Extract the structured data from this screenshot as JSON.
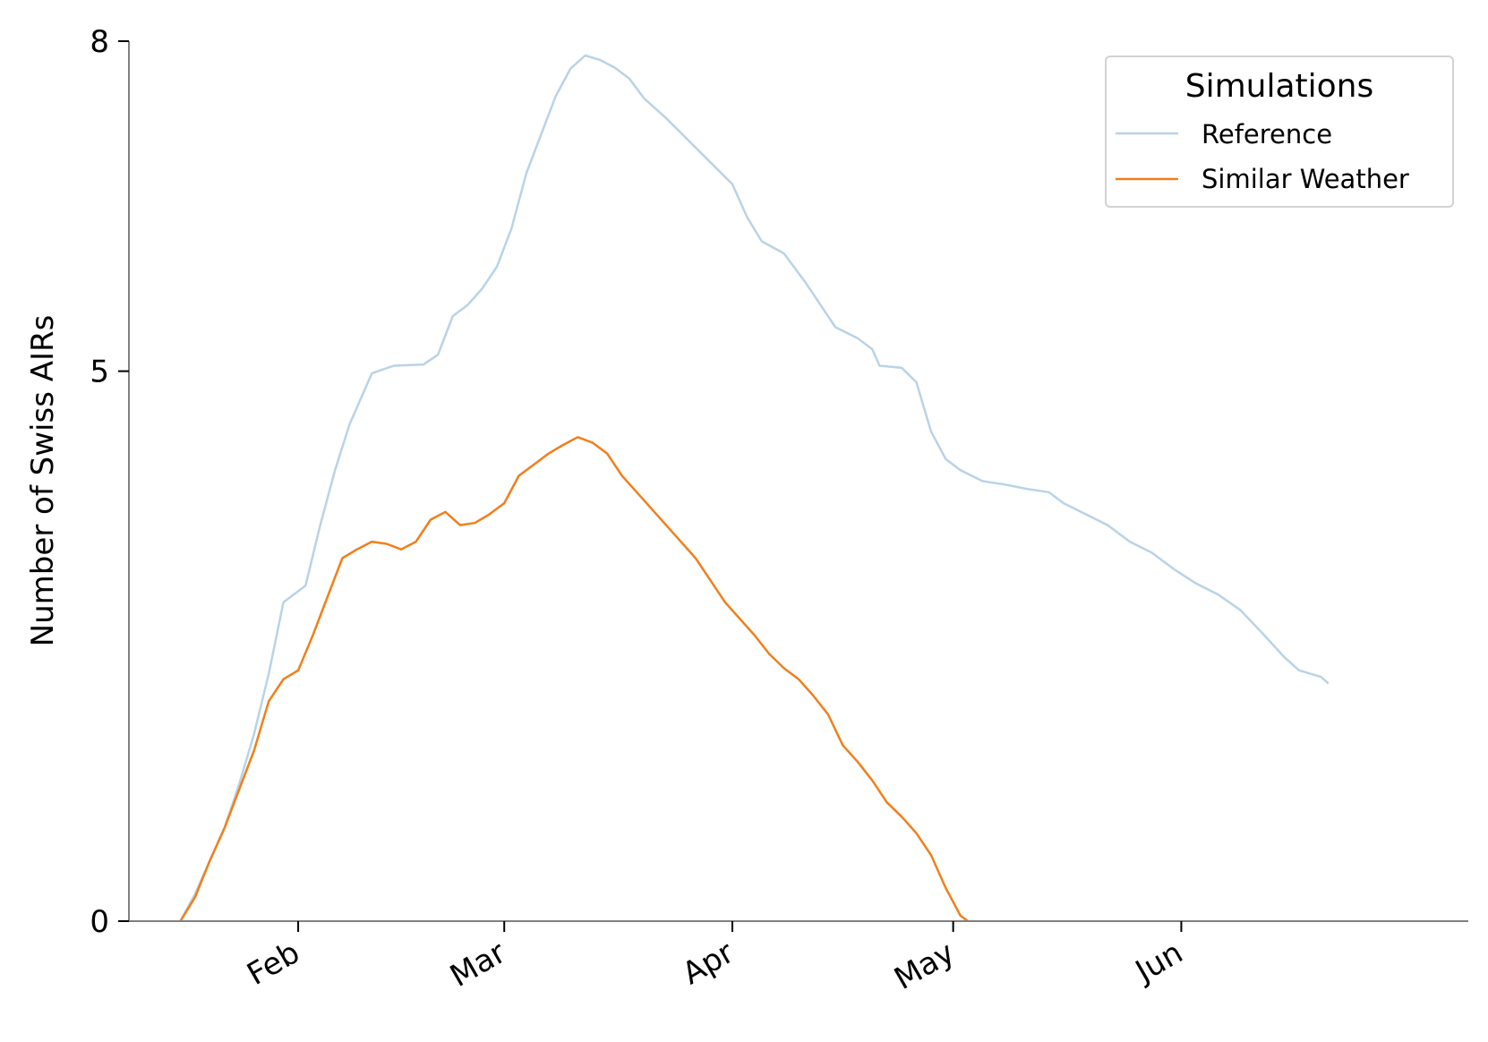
{
  "chart_data": {
    "type": "line",
    "title": "",
    "xlabel": "",
    "ylabel": "Number of Swiss AIRs",
    "x_type": "date",
    "xlim": [
      "2025-01-09",
      "2025-07-10"
    ],
    "ylim": [
      0,
      8
    ],
    "x_ticks": [
      {
        "date": "2025-02-01",
        "label": "Feb"
      },
      {
        "date": "2025-03-01",
        "label": "Mar"
      },
      {
        "date": "2025-04-01",
        "label": "Apr"
      },
      {
        "date": "2025-05-01",
        "label": "May"
      },
      {
        "date": "2025-06-01",
        "label": "Jun"
      }
    ],
    "y_ticks": [
      0,
      5,
      8
    ],
    "grid": false,
    "legend": {
      "title": "Simulations",
      "placement": "top-right"
    },
    "series": [
      {
        "name": "Reference",
        "color": "#b9d3e6",
        "points": [
          [
            "2025-01-16",
            0.0
          ],
          [
            "2025-01-18",
            0.25
          ],
          [
            "2025-01-20",
            0.55
          ],
          [
            "2025-01-22",
            0.85
          ],
          [
            "2025-01-24",
            1.25
          ],
          [
            "2025-01-26",
            1.7
          ],
          [
            "2025-01-28",
            2.25
          ],
          [
            "2025-01-30",
            2.9
          ],
          [
            "2025-02-02",
            3.05
          ],
          [
            "2025-02-04",
            3.6
          ],
          [
            "2025-02-06",
            4.1
          ],
          [
            "2025-02-08",
            4.52
          ],
          [
            "2025-02-11",
            4.98
          ],
          [
            "2025-02-14",
            5.05
          ],
          [
            "2025-02-18",
            5.06
          ],
          [
            "2025-02-20",
            5.15
          ],
          [
            "2025-02-22",
            5.5
          ],
          [
            "2025-02-24",
            5.6
          ],
          [
            "2025-02-26",
            5.75
          ],
          [
            "2025-02-28",
            5.95
          ],
          [
            "2025-03-02",
            6.3
          ],
          [
            "2025-03-04",
            6.8
          ],
          [
            "2025-03-06",
            7.15
          ],
          [
            "2025-03-08",
            7.5
          ],
          [
            "2025-03-10",
            7.75
          ],
          [
            "2025-03-12",
            7.87
          ],
          [
            "2025-03-14",
            7.83
          ],
          [
            "2025-03-16",
            7.76
          ],
          [
            "2025-03-18",
            7.66
          ],
          [
            "2025-03-20",
            7.48
          ],
          [
            "2025-03-23",
            7.3
          ],
          [
            "2025-03-26",
            7.1
          ],
          [
            "2025-03-29",
            6.9
          ],
          [
            "2025-04-01",
            6.7
          ],
          [
            "2025-04-03",
            6.4
          ],
          [
            "2025-04-05",
            6.18
          ],
          [
            "2025-04-08",
            6.07
          ],
          [
            "2025-04-11",
            5.8
          ],
          [
            "2025-04-13",
            5.6
          ],
          [
            "2025-04-15",
            5.4
          ],
          [
            "2025-04-18",
            5.3
          ],
          [
            "2025-04-20",
            5.2
          ],
          [
            "2025-04-21",
            5.05
          ],
          [
            "2025-04-24",
            5.03
          ],
          [
            "2025-04-26",
            4.9
          ],
          [
            "2025-04-28",
            4.45
          ],
          [
            "2025-04-30",
            4.2
          ],
          [
            "2025-05-02",
            4.1
          ],
          [
            "2025-05-05",
            4.0
          ],
          [
            "2025-05-08",
            3.97
          ],
          [
            "2025-05-11",
            3.93
          ],
          [
            "2025-05-14",
            3.9
          ],
          [
            "2025-05-16",
            3.8
          ],
          [
            "2025-05-19",
            3.7
          ],
          [
            "2025-05-22",
            3.6
          ],
          [
            "2025-05-25",
            3.45
          ],
          [
            "2025-05-28",
            3.35
          ],
          [
            "2025-05-31",
            3.2
          ],
          [
            "2025-06-03",
            3.07
          ],
          [
            "2025-06-06",
            2.97
          ],
          [
            "2025-06-09",
            2.83
          ],
          [
            "2025-06-12",
            2.62
          ],
          [
            "2025-06-15",
            2.4
          ],
          [
            "2025-06-17",
            2.28
          ],
          [
            "2025-06-20",
            2.22
          ],
          [
            "2025-06-21",
            2.16
          ]
        ]
      },
      {
        "name": "Similar Weather",
        "color": "#f07f1b",
        "points": [
          [
            "2025-01-16",
            0.0
          ],
          [
            "2025-01-18",
            0.22
          ],
          [
            "2025-01-20",
            0.55
          ],
          [
            "2025-01-22",
            0.85
          ],
          [
            "2025-01-24",
            1.2
          ],
          [
            "2025-01-26",
            1.55
          ],
          [
            "2025-01-28",
            2.0
          ],
          [
            "2025-01-30",
            2.2
          ],
          [
            "2025-02-01",
            2.28
          ],
          [
            "2025-02-03",
            2.6
          ],
          [
            "2025-02-05",
            2.95
          ],
          [
            "2025-02-07",
            3.3
          ],
          [
            "2025-02-09",
            3.38
          ],
          [
            "2025-02-11",
            3.45
          ],
          [
            "2025-02-13",
            3.43
          ],
          [
            "2025-02-15",
            3.38
          ],
          [
            "2025-02-17",
            3.45
          ],
          [
            "2025-02-19",
            3.65
          ],
          [
            "2025-02-21",
            3.72
          ],
          [
            "2025-02-23",
            3.6
          ],
          [
            "2025-02-25",
            3.62
          ],
          [
            "2025-02-27",
            3.7
          ],
          [
            "2025-03-01",
            3.8
          ],
          [
            "2025-03-03",
            4.05
          ],
          [
            "2025-03-05",
            4.15
          ],
          [
            "2025-03-07",
            4.25
          ],
          [
            "2025-03-09",
            4.33
          ],
          [
            "2025-03-11",
            4.4
          ],
          [
            "2025-03-13",
            4.35
          ],
          [
            "2025-03-15",
            4.25
          ],
          [
            "2025-03-17",
            4.05
          ],
          [
            "2025-03-19",
            3.9
          ],
          [
            "2025-03-21",
            3.75
          ],
          [
            "2025-03-23",
            3.6
          ],
          [
            "2025-03-25",
            3.45
          ],
          [
            "2025-03-27",
            3.3
          ],
          [
            "2025-03-29",
            3.1
          ],
          [
            "2025-03-31",
            2.9
          ],
          [
            "2025-04-02",
            2.75
          ],
          [
            "2025-04-04",
            2.6
          ],
          [
            "2025-04-06",
            2.43
          ],
          [
            "2025-04-08",
            2.3
          ],
          [
            "2025-04-10",
            2.2
          ],
          [
            "2025-04-12",
            2.05
          ],
          [
            "2025-04-14",
            1.88
          ],
          [
            "2025-04-16",
            1.6
          ],
          [
            "2025-04-18",
            1.45
          ],
          [
            "2025-04-20",
            1.28
          ],
          [
            "2025-04-22",
            1.08
          ],
          [
            "2025-04-24",
            0.95
          ],
          [
            "2025-04-26",
            0.8
          ],
          [
            "2025-04-28",
            0.6
          ],
          [
            "2025-04-30",
            0.3
          ],
          [
            "2025-05-02",
            0.05
          ],
          [
            "2025-05-03",
            0.0
          ]
        ]
      }
    ]
  }
}
